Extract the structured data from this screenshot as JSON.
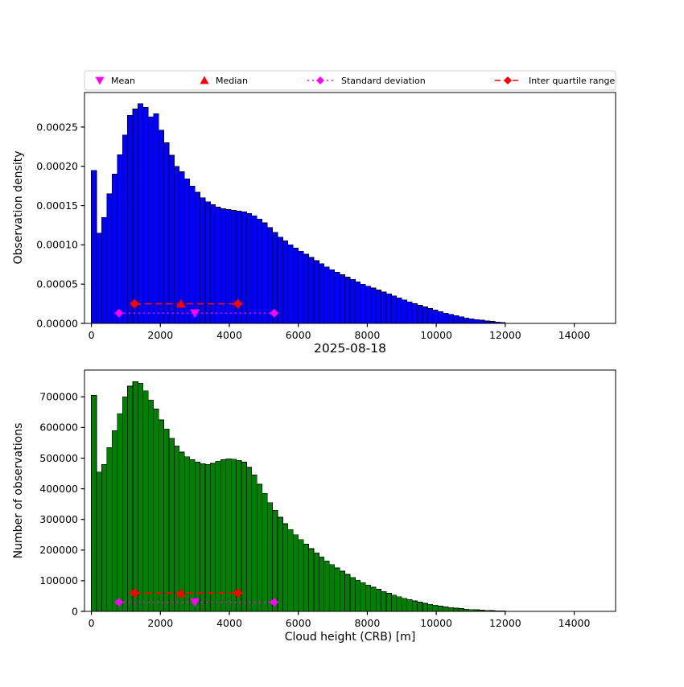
{
  "figure": {
    "title_between": "2025-08-18",
    "xlabel": "Cloud height (CRB) [m]",
    "background": "#ffffff"
  },
  "legend": {
    "items": [
      {
        "label": "Mean",
        "marker": "triangle-down",
        "color": "#ff00ff",
        "line": "none"
      },
      {
        "label": "Median",
        "marker": "triangle-up",
        "color": "#ff0000",
        "line": "none"
      },
      {
        "label": "Standard deviation",
        "marker": "diamond",
        "color": "#ff00ff",
        "line": "dotted"
      },
      {
        "label": "Inter quartile range",
        "marker": "diamond",
        "color": "#ff0000",
        "line": "dashed"
      }
    ]
  },
  "chart_data": [
    {
      "type": "bar",
      "title": "",
      "ylabel": "Observation density",
      "bar_color": "#0000ff",
      "edge_color": "#000000",
      "bin_start": 0,
      "bin_width": 150,
      "xlim": [
        -200,
        15200
      ],
      "ylim": [
        0,
        0.000294
      ],
      "xticks": [
        0,
        2000,
        4000,
        6000,
        8000,
        10000,
        12000,
        14000
      ],
      "xtick_labels": [
        "0",
        "2000",
        "4000",
        "6000",
        "8000",
        "10000",
        "12000",
        "14000"
      ],
      "yticks": [
        0,
        5e-05,
        0.0001,
        0.00015,
        0.0002,
        0.00025
      ],
      "ytick_labels": [
        "0.00000",
        "0.00005",
        "0.00010",
        "0.00015",
        "0.00020",
        "0.00025"
      ],
      "values": [
        0.000195,
        0.000115,
        0.000135,
        0.000165,
        0.00019,
        0.000215,
        0.00024,
        0.000265,
        0.000273,
        0.00028,
        0.000275,
        0.000263,
        0.000267,
        0.000246,
        0.00023,
        0.000214,
        0.0002,
        0.000193,
        0.000184,
        0.000175,
        0.000167,
        0.00016,
        0.000155,
        0.000151,
        0.000148,
        0.000146,
        0.000145,
        0.000144,
        0.000143,
        0.000142,
        0.00014,
        0.000137,
        0.000133,
        0.000128,
        0.000122,
        0.000116,
        0.00011,
        0.000105,
        0.0001,
        9.6e-05,
        9.2e-05,
        8.8e-05,
        8.4e-05,
        8e-05,
        7.6e-05,
        7.2e-05,
        6.85e-05,
        6.5e-05,
        6.2e-05,
        5.9e-05,
        5.6e-05,
        5.3e-05,
        5e-05,
        4.75e-05,
        4.5e-05,
        4.25e-05,
        4e-05,
        3.75e-05,
        3.5e-05,
        3.25e-05,
        3e-05,
        2.75e-05,
        2.5e-05,
        2.3e-05,
        2.1e-05,
        1.9e-05,
        1.7e-05,
        1.5e-05,
        1.3e-05,
        1.15e-05,
        1e-05,
        8.5e-06,
        7e-06,
        6e-06,
        5e-06,
        4e-06,
        3e-06,
        2.5e-06,
        1.8e-06,
        1.2e-06
      ],
      "stats": {
        "mean": 3000,
        "median": 2600,
        "std_range": [
          800,
          5300
        ],
        "iqr_range": [
          1250,
          4250
        ],
        "std_marker_y": 1.3e-05,
        "iqr_marker_y": 2.5e-05,
        "mean_color": "#ff00ff",
        "median_color": "#ff0000"
      }
    },
    {
      "type": "bar",
      "title": "",
      "ylabel": "Number of observations",
      "bar_color": "#008000",
      "edge_color": "#000000",
      "bin_start": 0,
      "bin_width": 150,
      "xlim": [
        -200,
        15200
      ],
      "ylim": [
        0,
        787500
      ],
      "xticks": [
        0,
        2000,
        4000,
        6000,
        8000,
        10000,
        12000,
        14000
      ],
      "xtick_labels": [
        "0",
        "2000",
        "4000",
        "6000",
        "8000",
        "10000",
        "12000",
        "14000"
      ],
      "yticks": [
        0,
        100000,
        200000,
        300000,
        400000,
        500000,
        600000,
        700000
      ],
      "ytick_labels": [
        "0",
        "100000",
        "200000",
        "300000",
        "400000",
        "500000",
        "600000",
        "700000"
      ],
      "values": [
        705000,
        455000,
        480000,
        535000,
        590000,
        645000,
        700000,
        735000,
        750000,
        745000,
        720000,
        690000,
        660000,
        625000,
        595000,
        565000,
        540000,
        520000,
        505000,
        495000,
        487000,
        482000,
        480000,
        483000,
        490000,
        495000,
        498000,
        497000,
        493000,
        487000,
        470000,
        445000,
        415000,
        385000,
        355000,
        330000,
        307000,
        286000,
        267000,
        250000,
        234000,
        219000,
        205000,
        191000,
        178000,
        165000,
        153000,
        142000,
        131000,
        121000,
        111000,
        102000,
        94000,
        86000,
        79000,
        72000,
        65000,
        59000,
        53000,
        48000,
        43000,
        38000,
        34000,
        30000,
        26000,
        23000,
        20000,
        17000,
        14500,
        12500,
        10500,
        9000,
        7500,
        6000,
        5000,
        4000,
        3200,
        2500,
        2000,
        1500
      ],
      "stats": {
        "mean": 3000,
        "median": 2600,
        "std_range": [
          800,
          5300
        ],
        "iqr_range": [
          1250,
          4250
        ],
        "std_marker_y": 30000,
        "iqr_marker_y": 60000,
        "mean_color": "#ff00ff",
        "median_color": "#ff0000"
      }
    }
  ]
}
